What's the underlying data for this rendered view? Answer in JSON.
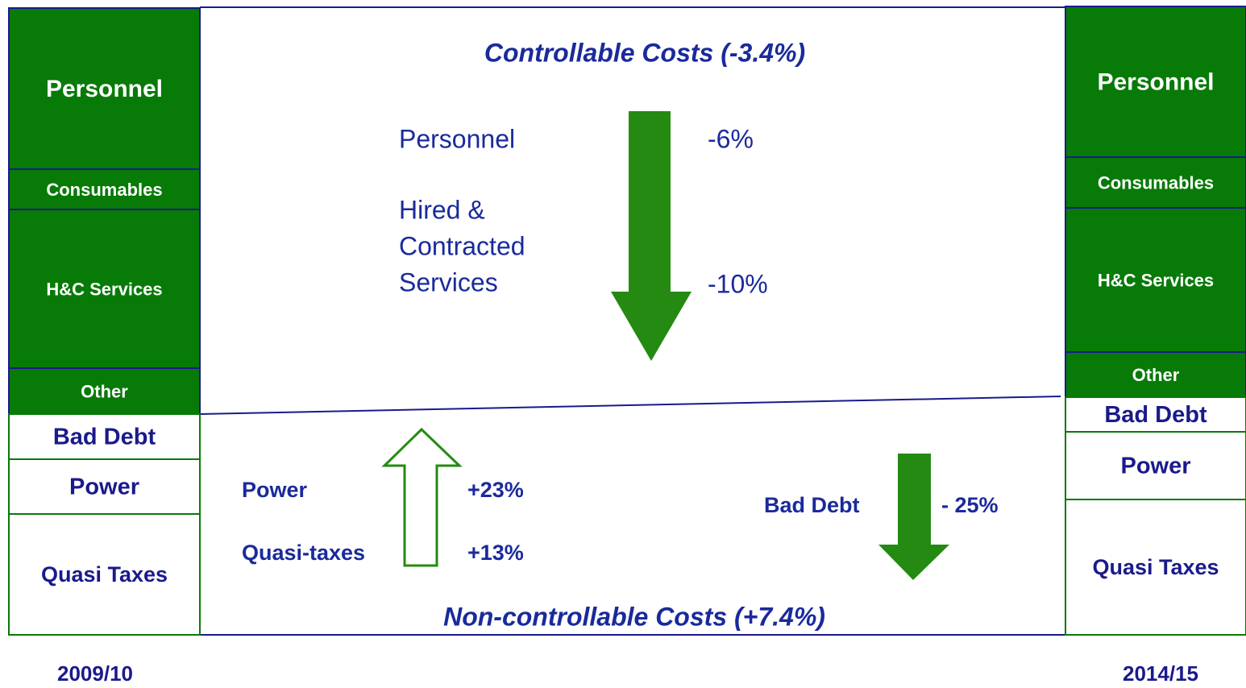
{
  "left_column": {
    "year": "2009/10",
    "segments": [
      "Personnel",
      "Consumables",
      "H&C Services",
      "Other",
      "Bad Debt",
      "Power",
      "Quasi Taxes"
    ]
  },
  "right_column": {
    "year": "2014/15",
    "segments": [
      "Personnel",
      "Consumables",
      "H&C Services",
      "Other",
      "Bad Debt",
      "Power",
      "Quasi Taxes"
    ]
  },
  "controllable": {
    "title": "Controllable Costs (-3.4%)",
    "items": [
      {
        "label": "Personnel",
        "change": "-6%"
      },
      {
        "label": [
          "Hired &",
          "Contracted",
          "Services"
        ],
        "change": "-10%"
      }
    ]
  },
  "non_controllable": {
    "title": "Non-controllable Costs (+7.4%)",
    "items": [
      {
        "label": "Power",
        "change": "+23%"
      },
      {
        "label": "Quasi-taxes",
        "change": "+13%"
      },
      {
        "label": "Bad Debt",
        "change": "- 25%"
      }
    ]
  }
}
